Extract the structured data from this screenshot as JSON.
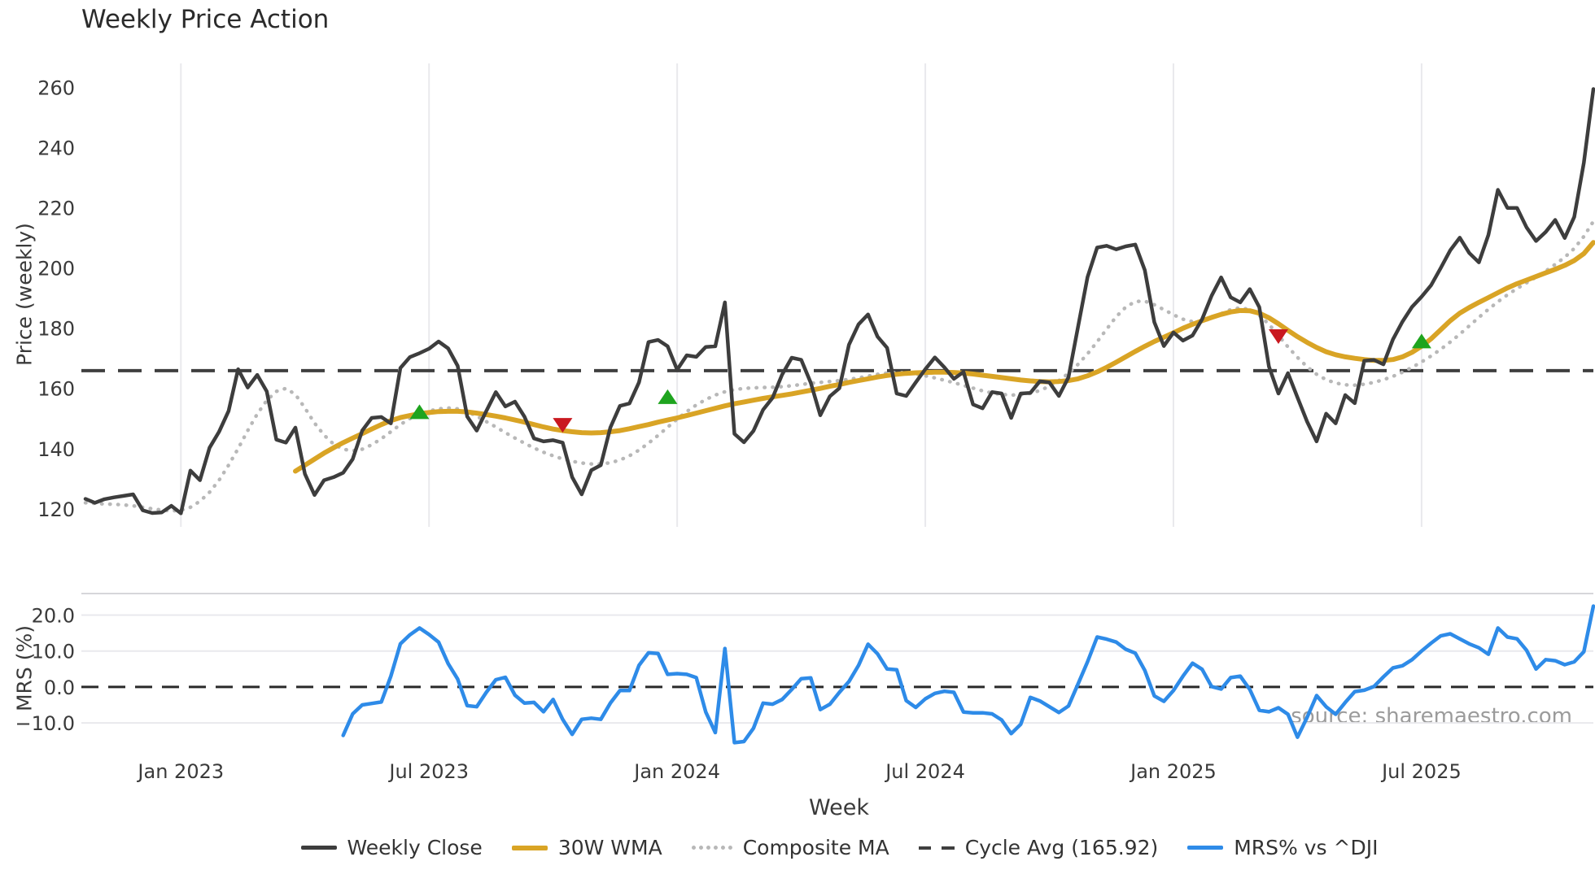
{
  "title": "Weekly Price Action",
  "source_watermark": "source: sharemaestro.com",
  "legend": {
    "items": [
      {
        "label": "Weekly Close",
        "swatch": "solid-dark"
      },
      {
        "label": "30W WMA",
        "swatch": "solid-gold"
      },
      {
        "label": "Composite MA",
        "swatch": "dotted-gray"
      },
      {
        "label": "Cycle Avg (165.92)",
        "swatch": "dashed-dark"
      },
      {
        "label": "MRS% vs ^DJI",
        "swatch": "solid-blue"
      }
    ]
  },
  "colors": {
    "weekly_close": "#3d3d3d",
    "wma": "#d9a425",
    "composite": "#b8b8b8",
    "cycle_avg": "#3f3f3f",
    "mrs": "#2e8be8",
    "buy_marker": "#1ea41e",
    "sell_marker": "#c9181f",
    "grid": "#e9e9ed",
    "panel_border": "#d6d6da",
    "tick_text": "#3a3a3a",
    "zero_dash": "#2a2a2a"
  },
  "chart_data": {
    "type": "line",
    "x": {
      "label": "Week",
      "weeks_total": 159,
      "ticks": [
        {
          "label": "Jan 2023",
          "week": 10
        },
        {
          "label": "Jul 2023",
          "week": 36
        },
        {
          "label": "Jan 2024",
          "week": 62
        },
        {
          "label": "Jul 2024",
          "week": 88
        },
        {
          "label": "Jan 2025",
          "week": 114
        },
        {
          "label": "Jul 2025",
          "week": 140
        }
      ]
    },
    "price_panel": {
      "ylabel": "Price (weekly)",
      "yticks": [
        120,
        140,
        160,
        180,
        200,
        220,
        240,
        260
      ],
      "ylim": [
        114,
        268
      ],
      "cycle_avg": 165.92,
      "series": [
        {
          "name": "Weekly Close",
          "style": "solid",
          "start_week": 0,
          "values": [
            123.3,
            122.0,
            123.2,
            123.8,
            124.3,
            124.8,
            119.5,
            118.6,
            118.8,
            121.0,
            118.5,
            132.7,
            129.5,
            140.3,
            145.6,
            152.5,
            166.4,
            160.3,
            164.5,
            159.0,
            143.0,
            142.0,
            147.0,
            131.6,
            124.6,
            129.5,
            130.5,
            132.0,
            136.5,
            146.0,
            150.2,
            150.5,
            148.4,
            166.8,
            170.4,
            171.7,
            173.2,
            175.6,
            173.3,
            167.5,
            150.7,
            146.0,
            152.5,
            158.8,
            154.0,
            155.6,
            150.6,
            143.4,
            142.4,
            142.8,
            142.0,
            130.5,
            124.8,
            132.8,
            134.5,
            147.0,
            154.2,
            155.0,
            162.0,
            175.4,
            176.1,
            174.0,
            166.2,
            171.0,
            170.5,
            173.8,
            174.0,
            188.6,
            144.9,
            142.1,
            145.9,
            152.9,
            156.9,
            164.6,
            170.2,
            169.5,
            161.9,
            151.1,
            157.4,
            160.1,
            174.5,
            181.3,
            184.6,
            177.2,
            173.5,
            158.3,
            157.5,
            162.0,
            166.4,
            170.3,
            167.0,
            163.2,
            165.5,
            154.7,
            153.4,
            158.8,
            158.3,
            150.2,
            158.3,
            158.5,
            162.4,
            162.0,
            157.5,
            163.7,
            180.4,
            197.0,
            206.8,
            207.4,
            206.2,
            207.2,
            207.8,
            199.3,
            182.0,
            174.1,
            178.6,
            175.9,
            177.6,
            183.0,
            190.8,
            196.9,
            190.3,
            188.6,
            193.0,
            187.0,
            167.3,
            158.3,
            165.1,
            157.0,
            149.0,
            142.4,
            151.6,
            148.4,
            157.8,
            155.1,
            169.2,
            169.5,
            168.0,
            176.3,
            182.2,
            187.1,
            190.5,
            194.3,
            200.0,
            205.9,
            210.1,
            205.0,
            201.9,
            211.0,
            226.0,
            220.0,
            220.0,
            213.5,
            209.0,
            212.0,
            216.0,
            210.0,
            217.0,
            235.0,
            259.5
          ]
        },
        {
          "name": "30W WMA",
          "style": "solid",
          "start_week": 22,
          "values": [
            132.5,
            134.5,
            136.5,
            138.5,
            140.3,
            142.0,
            143.5,
            145.0,
            146.5,
            148.0,
            149.3,
            150.3,
            151.0,
            151.6,
            152.0,
            152.3,
            152.4,
            152.4,
            152.2,
            151.8,
            151.3,
            150.8,
            150.2,
            149.5,
            148.8,
            148.0,
            147.2,
            146.5,
            146.0,
            145.6,
            145.3,
            145.2,
            145.3,
            145.6,
            146.0,
            146.6,
            147.3,
            148.0,
            148.8,
            149.5,
            150.2,
            151.0,
            151.8,
            152.6,
            153.4,
            154.2,
            154.9,
            155.5,
            156.1,
            156.7,
            157.2,
            157.7,
            158.2,
            158.8,
            159.4,
            160.0,
            160.7,
            161.3,
            162.0,
            162.6,
            163.2,
            163.8,
            164.3,
            164.7,
            165.0,
            165.2,
            165.3,
            165.4,
            165.4,
            165.3,
            165.1,
            164.8,
            164.4,
            164.0,
            163.6,
            163.2,
            162.8,
            162.5,
            162.3,
            162.2,
            162.3,
            162.6,
            163.2,
            164.2,
            165.5,
            167.0,
            168.7,
            170.5,
            172.3,
            174.0,
            175.6,
            177.0,
            178.5,
            180.0,
            181.3,
            182.5,
            183.6,
            184.6,
            185.4,
            185.9,
            185.8,
            185.0,
            183.5,
            181.5,
            179.3,
            177.2,
            175.3,
            173.6,
            172.2,
            171.2,
            170.5,
            170.0,
            169.6,
            169.3,
            169.3,
            169.6,
            170.5,
            172.0,
            174.0,
            176.5,
            179.5,
            182.5,
            185.0,
            186.9,
            188.6,
            190.2,
            191.8,
            193.4,
            194.8,
            196.0,
            197.2,
            198.4,
            199.6,
            200.9,
            202.5,
            204.8,
            208.5
          ]
        },
        {
          "name": "Composite MA",
          "style": "dotted",
          "start_week": 0,
          "values": [
            122.0,
            121.8,
            121.6,
            121.5,
            121.3,
            121.0,
            120.5,
            120.0,
            119.6,
            119.3,
            119.5,
            120.5,
            122.5,
            125.5,
            129.5,
            134.5,
            140.0,
            146.0,
            151.5,
            156.0,
            159.0,
            160.0,
            158.0,
            153.5,
            148.5,
            144.5,
            141.5,
            139.8,
            139.3,
            139.8,
            141.3,
            143.3,
            145.6,
            148.0,
            150.0,
            151.5,
            152.5,
            153.2,
            153.5,
            153.2,
            152.3,
            150.8,
            149.0,
            147.2,
            145.3,
            143.5,
            141.8,
            140.2,
            138.8,
            137.6,
            136.6,
            135.8,
            135.2,
            134.9,
            134.9,
            135.3,
            136.2,
            137.6,
            139.5,
            141.8,
            144.4,
            147.1,
            149.8,
            152.3,
            154.5,
            156.3,
            157.8,
            158.9,
            159.6,
            160.0,
            160.2,
            160.3,
            160.4,
            160.6,
            160.9,
            161.3,
            161.7,
            162.0,
            162.3,
            162.6,
            163.0,
            163.5,
            164.1,
            164.7,
            165.1,
            165.3,
            165.2,
            164.8,
            164.2,
            163.5,
            162.7,
            161.9,
            161.0,
            160.1,
            159.2,
            158.5,
            158.0,
            157.8,
            157.9,
            158.4,
            159.3,
            160.7,
            162.6,
            165.0,
            168.0,
            171.5,
            175.5,
            179.7,
            183.8,
            187.0,
            188.9,
            189.0,
            187.8,
            186.2,
            184.5,
            183.0,
            182.2,
            182.3,
            183.3,
            184.8,
            186.2,
            186.8,
            186.2,
            184.3,
            181.3,
            177.6,
            173.8,
            170.3,
            167.2,
            164.7,
            162.9,
            161.8,
            161.2,
            161.1,
            161.4,
            162.0,
            162.9,
            164.0,
            165.4,
            167.0,
            168.8,
            170.8,
            173.0,
            175.4,
            178.0,
            180.8,
            183.6,
            186.3,
            188.8,
            191.1,
            193.2,
            195.1,
            197.0,
            199.0,
            201.2,
            203.6,
            206.5,
            210.5,
            215.5
          ]
        }
      ],
      "markers": {
        "buy": [
          {
            "week": 35,
            "value": 152.0
          },
          {
            "week": 61,
            "value": 157.0
          },
          {
            "week": 140,
            "value": 175.5
          }
        ],
        "sell": [
          {
            "week": 50,
            "value": 148.0
          },
          {
            "week": 125,
            "value": 177.5
          }
        ]
      }
    },
    "mrs_panel": {
      "ylabel": "MRS (%)",
      "yticks": [
        {
          "label": "20.0",
          "value": 20
        },
        {
          "label": "10.0",
          "value": 10
        },
        {
          "label": "0.0",
          "value": 0
        },
        {
          "label": "−10.0",
          "value": -10
        }
      ],
      "ylim": [
        -17,
        26
      ],
      "zero_line": 0,
      "series": [
        {
          "name": "MRS% vs ^DJI",
          "style": "solid",
          "start_week": 27,
          "values": [
            -13.5,
            -7.5,
            -5.0,
            -4.6,
            -4.2,
            3.0,
            12.0,
            14.5,
            16.4,
            14.6,
            12.5,
            6.5,
            2.2,
            -5.2,
            -5.5,
            -1.5,
            2.0,
            2.7,
            -2.3,
            -4.5,
            -4.3,
            -6.9,
            -3.5,
            -9.0,
            -13.2,
            -9.0,
            -8.7,
            -9.0,
            -4.5,
            -1.0,
            -1.0,
            6.0,
            9.5,
            9.3,
            3.5,
            3.7,
            3.5,
            2.6,
            -7.0,
            -12.7,
            10.7,
            -15.5,
            -15.2,
            -11.5,
            -4.5,
            -4.8,
            -3.5,
            -0.7,
            2.3,
            2.5,
            -6.3,
            -4.8,
            -1.5,
            1.5,
            6.0,
            11.9,
            9.2,
            5.0,
            4.8,
            -3.8,
            -5.7,
            -3.3,
            -1.8,
            -1.2,
            -1.5,
            -7.0,
            -7.2,
            -7.2,
            -7.5,
            -9.2,
            -13.0,
            -10.4,
            -2.9,
            -3.9,
            -5.5,
            -7.1,
            -5.3,
            0.8,
            7.0,
            13.9,
            13.3,
            12.5,
            10.5,
            9.4,
            4.6,
            -2.5,
            -4.0,
            -1.0,
            3.0,
            6.6,
            4.9,
            0.1,
            -0.6,
            2.6,
            3.0,
            -0.7,
            -6.5,
            -6.9,
            -5.8,
            -7.6,
            -14.0,
            -8.5,
            -2.4,
            -5.5,
            -7.6,
            -4.3,
            -1.3,
            -0.9,
            0.1,
            2.8,
            5.3,
            5.9,
            7.6,
            10.0,
            12.2,
            14.2,
            14.8,
            13.4,
            12.0,
            10.9,
            9.1,
            16.4,
            13.9,
            13.4,
            10.2,
            5.0,
            7.6,
            7.3,
            6.2,
            7.0,
            9.8,
            22.5
          ]
        }
      ]
    }
  }
}
